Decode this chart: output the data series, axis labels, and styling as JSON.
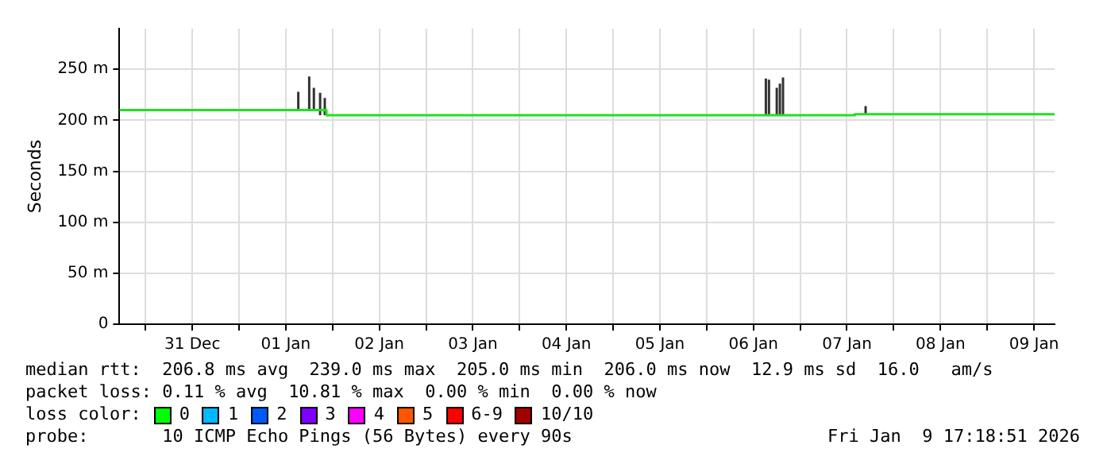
{
  "chart_data": {
    "type": "line",
    "ylabel": "Seconds",
    "xlim": [
      "2025-12-30T17:18",
      "2026-01-09T17:18"
    ],
    "xticks": [
      {
        "value": "2025-12-31T00:00",
        "label": null
      },
      {
        "value": "2025-12-31T12:00",
        "label": "31 Dec"
      },
      {
        "value": "2026-01-01T00:00",
        "label": null
      },
      {
        "value": "2026-01-01T12:00",
        "label": "01 Jan"
      },
      {
        "value": "2026-01-02T00:00",
        "label": null
      },
      {
        "value": "2026-01-02T12:00",
        "label": "02 Jan"
      },
      {
        "value": "2026-01-03T00:00",
        "label": null
      },
      {
        "value": "2026-01-03T12:00",
        "label": "03 Jan"
      },
      {
        "value": "2026-01-04T00:00",
        "label": null
      },
      {
        "value": "2026-01-04T12:00",
        "label": "04 Jan"
      },
      {
        "value": "2026-01-05T00:00",
        "label": null
      },
      {
        "value": "2026-01-05T12:00",
        "label": "05 Jan"
      },
      {
        "value": "2026-01-06T00:00",
        "label": null
      },
      {
        "value": "2026-01-06T12:00",
        "label": "06 Jan"
      },
      {
        "value": "2026-01-07T00:00",
        "label": null
      },
      {
        "value": "2026-01-07T12:00",
        "label": "07 Jan"
      },
      {
        "value": "2026-01-08T00:00",
        "label": null
      },
      {
        "value": "2026-01-08T12:00",
        "label": "08 Jan"
      },
      {
        "value": "2026-01-09T00:00",
        "label": null
      },
      {
        "value": "2026-01-09T12:00",
        "label": "09 Jan"
      }
    ],
    "ylim": [
      0,
      290
    ],
    "yticks": [
      {
        "value": 0,
        "label": "0"
      },
      {
        "value": 50,
        "label": "50 m"
      },
      {
        "value": 100,
        "label": "100 m"
      },
      {
        "value": 150,
        "label": "150 m"
      },
      {
        "value": 200,
        "label": "200 m"
      },
      {
        "value": 250,
        "label": "250 m"
      }
    ],
    "grid": true,
    "legend": false,
    "marker": "none",
    "series": [
      {
        "color": "#20e020",
        "x": [
          "2025-12-30T17:18",
          "2026-01-01T22:24",
          "2026-01-01T22:25",
          "2026-01-07T14:00",
          "2026-01-07T14:01",
          "2026-01-09T17:18"
        ],
        "values": [
          210,
          210,
          205,
          205,
          206,
          206
        ]
      },
      {
        "color": "#333333",
        "x": [
          "2026-01-01T15:12",
          "2026-01-01T15:12",
          "2026-01-01T15:13",
          "2026-01-01T18:00",
          "2026-01-01T18:00",
          "2026-01-01T18:01",
          "2026-01-01T19:12",
          "2026-01-01T19:12",
          "2026-01-01T19:13",
          "2026-01-01T20:48",
          "2026-01-01T20:48",
          "2026-01-01T20:49",
          "2026-01-01T22:00",
          "2026-01-01T22:00",
          "2026-01-01T22:01",
          "2026-01-06T15:12",
          "2026-01-06T15:12",
          "2026-01-06T15:13",
          "2026-01-06T16:00",
          "2026-01-06T16:00",
          "2026-01-06T16:01",
          "2026-01-06T18:00",
          "2026-01-06T18:00",
          "2026-01-06T18:01",
          "2026-01-06T18:48",
          "2026-01-06T18:48",
          "2026-01-06T18:49",
          "2026-01-06T19:36",
          "2026-01-06T19:36",
          "2026-01-06T19:37",
          "2026-01-07T16:48",
          "2026-01-07T16:48"
        ],
        "values": [
          210,
          228,
          null,
          210,
          243,
          null,
          210,
          232,
          null,
          205,
          227,
          null,
          205,
          222,
          null,
          205,
          241,
          null,
          205,
          240,
          null,
          205,
          232,
          null,
          205,
          236,
          null,
          205,
          242,
          null,
          205,
          214
        ]
      }
    ],
    "annotations": [
      "median rtt:  206.8 ms avg  239.0 ms max  205.0 ms min  206.0 ms now  12.9 ms sd  16.0   am/s",
      "packet loss: 0.11 % avg  10.81 % max  0.00 % min  0.00 % now",
      "loss color:",
      "0",
      "1",
      "2",
      "3",
      "4",
      "5",
      "6-9",
      "10/10",
      "probe:       10 ICMP Echo Pings (56 Bytes) every 90s",
      "Fri Jan  9 17:18:51 2026"
    ]
  }
}
